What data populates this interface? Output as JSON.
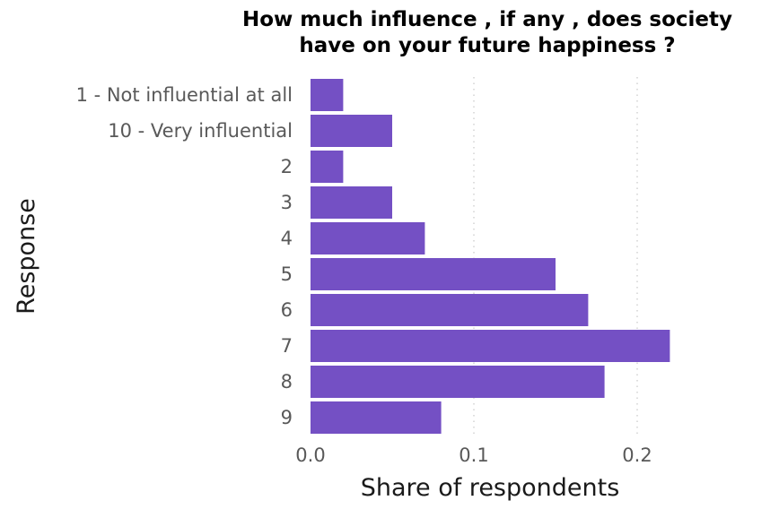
{
  "chart_data": {
    "type": "bar",
    "orientation": "horizontal",
    "title": "How much influence , if any , does society have on your future happiness ?",
    "title_lines": [
      "How much influence , if any , does society",
      "have on your future happiness ?"
    ],
    "xlabel": "Share of respondents",
    "ylabel": "Response",
    "categories": [
      "1 - Not influential at all",
      "10 - Very influential",
      "2",
      "3",
      "4",
      "5",
      "6",
      "7",
      "8",
      "9"
    ],
    "values": [
      0.02,
      0.05,
      0.02,
      0.05,
      0.07,
      0.15,
      0.17,
      0.22,
      0.18,
      0.08
    ],
    "xlim": [
      0,
      0.22
    ],
    "xticks": [
      0.0,
      0.1,
      0.2
    ],
    "xtick_labels": [
      "0.0",
      "0.1",
      "0.2"
    ],
    "grid": "vertical dotted",
    "bar_color": "#7450c4"
  }
}
